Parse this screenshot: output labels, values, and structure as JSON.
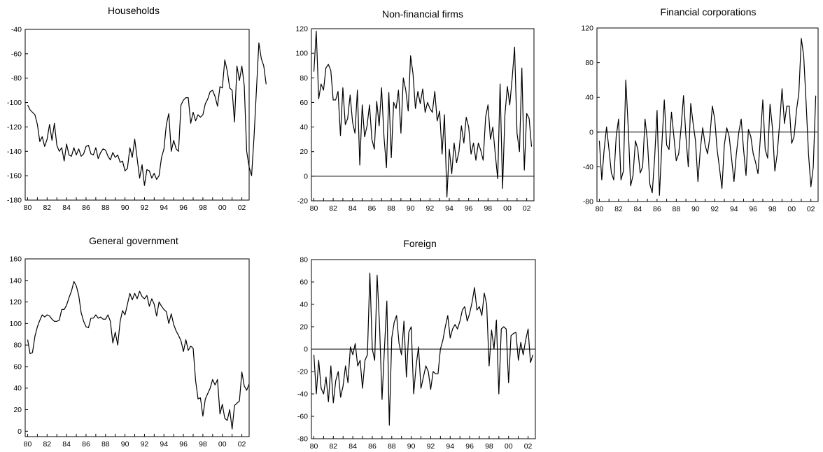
{
  "figure": {
    "background": "#ffffff",
    "line_color": "#000000"
  },
  "chart_data": [
    {
      "type": "line",
      "title": "Households",
      "xlabel": "",
      "ylabel": "",
      "x_start": 1980.0,
      "x_step": 0.25,
      "xlim": [
        1979.75,
        2002.75
      ],
      "xticks": [
        80,
        82,
        84,
        86,
        88,
        90,
        92,
        94,
        96,
        98,
        0,
        2
      ],
      "xtick_labels": [
        "80",
        "82",
        "84",
        "86",
        "88",
        "90",
        "92",
        "94",
        "96",
        "98",
        "00",
        "02"
      ],
      "ylim": [
        -180,
        -40
      ],
      "yticks": [
        -180,
        -160,
        -140,
        -120,
        -100,
        -80,
        -60,
        -40
      ],
      "zero_line": false,
      "grid": false,
      "series": [
        {
          "values": [
            -102,
            -106,
            -108,
            -110,
            -118,
            -132,
            -128,
            -136,
            -130,
            -118,
            -131,
            -117,
            -135,
            -140,
            -137,
            -148,
            -134,
            -143,
            -144,
            -137,
            -143,
            -138,
            -144,
            -142,
            -136,
            -135,
            -142,
            -143,
            -137,
            -146,
            -141,
            -138,
            -139,
            -144,
            -147,
            -141,
            -145,
            -143,
            -149,
            -148,
            -156,
            -154,
            -137,
            -145,
            -130,
            -146,
            -162,
            -151,
            -168,
            -155,
            -156,
            -162,
            -158,
            -163,
            -160,
            -145,
            -138,
            -118,
            -109,
            -140,
            -131,
            -138,
            -140,
            -102,
            -98,
            -96,
            -96,
            -117,
            -108,
            -115,
            -110,
            -112,
            -110,
            -101,
            -97,
            -91,
            -90,
            -95,
            -103,
            -87,
            -88,
            -65,
            -74,
            -88,
            -90,
            -116,
            -70,
            -82,
            -70,
            -86,
            -140,
            -153,
            -160,
            -128,
            -90,
            -51,
            -64,
            -70,
            -85
          ]
        }
      ]
    },
    {
      "type": "line",
      "title": "Non-financial firms",
      "xlabel": "",
      "ylabel": "",
      "x_start": 1980.0,
      "x_step": 0.25,
      "xlim": [
        1979.75,
        2002.75
      ],
      "xticks": [
        80,
        82,
        84,
        86,
        88,
        90,
        92,
        94,
        96,
        98,
        0,
        2
      ],
      "xtick_labels": [
        "80",
        "82",
        "84",
        "86",
        "88",
        "90",
        "92",
        "94",
        "96",
        "98",
        "00",
        "02"
      ],
      "ylim": [
        -20,
        120
      ],
      "yticks": [
        -20,
        0,
        20,
        40,
        60,
        80,
        100,
        120
      ],
      "zero_line": true,
      "grid": false,
      "series": [
        {
          "values": [
            85,
            118,
            63,
            75,
            70,
            88,
            91,
            86,
            62,
            62,
            69,
            33,
            72,
            42,
            47,
            66,
            44,
            35,
            70,
            9,
            58,
            32,
            41,
            58,
            30,
            22,
            61,
            41,
            72,
            32,
            7,
            68,
            15,
            60,
            55,
            70,
            35,
            80,
            70,
            53,
            98,
            83,
            55,
            69,
            59,
            71,
            52,
            60,
            55,
            52,
            69,
            45,
            53,
            18,
            50,
            -17,
            22,
            2,
            27,
            11,
            20,
            41,
            27,
            48,
            40,
            18,
            27,
            13,
            27,
            21,
            13,
            48,
            58,
            30,
            40,
            18,
            -2,
            75,
            -10,
            50,
            73,
            58,
            80,
            105,
            35,
            20,
            88,
            5,
            51,
            47,
            24
          ]
        }
      ]
    },
    {
      "type": "line",
      "title": "Financial corporations",
      "xlabel": "",
      "ylabel": "",
      "x_start": 1980.0,
      "x_step": 0.25,
      "xlim": [
        1979.75,
        2002.75
      ],
      "xticks": [
        80,
        82,
        84,
        86,
        88,
        90,
        92,
        94,
        96,
        98,
        0,
        2
      ],
      "xtick_labels": [
        "80",
        "82",
        "84",
        "86",
        "88",
        "90",
        "92",
        "94",
        "96",
        "98",
        "00",
        "02"
      ],
      "ylim": [
        -80,
        120
      ],
      "yticks": [
        -80,
        -40,
        0,
        40,
        80,
        120
      ],
      "zero_line": true,
      "grid": false,
      "series": [
        {
          "values": [
            -10,
            -55,
            -20,
            6,
            -20,
            -47,
            -55,
            -5,
            15,
            -55,
            -45,
            60,
            5,
            -62,
            -50,
            -10,
            -20,
            -47,
            -40,
            15,
            -10,
            -60,
            -70,
            -30,
            25,
            -73,
            -15,
            37,
            -15,
            -20,
            23,
            -5,
            -33,
            -25,
            5,
            42,
            -5,
            -40,
            33,
            10,
            -10,
            -57,
            -20,
            5,
            -15,
            -25,
            -5,
            30,
            15,
            -20,
            -42,
            -65,
            -15,
            5,
            -5,
            -30,
            -57,
            -25,
            0,
            15,
            -20,
            -50,
            3,
            -5,
            -25,
            -35,
            -48,
            -5,
            37,
            -20,
            -30,
            32,
            5,
            -45,
            -25,
            10,
            50,
            10,
            30,
            30,
            -13,
            -5,
            25,
            45,
            108,
            88,
            35,
            -25,
            -63,
            -40,
            42
          ]
        }
      ]
    },
    {
      "type": "line",
      "title": "General government",
      "xlabel": "",
      "ylabel": "",
      "x_start": 1980.0,
      "x_step": 0.25,
      "xlim": [
        1979.75,
        2002.75
      ],
      "xticks": [
        80,
        82,
        84,
        86,
        88,
        90,
        92,
        94,
        96,
        98,
        0,
        2
      ],
      "xtick_labels": [
        "80",
        "82",
        "84",
        "86",
        "88",
        "90",
        "92",
        "94",
        "96",
        "98",
        "00",
        "02"
      ],
      "ylim": [
        -5,
        160
      ],
      "yticks": [
        0,
        20,
        40,
        60,
        80,
        100,
        120,
        140,
        160
      ],
      "zero_line": false,
      "grid": false,
      "series": [
        {
          "values": [
            85,
            72,
            73,
            88,
            97,
            103,
            108,
            106,
            108,
            107,
            104,
            102,
            102,
            103,
            113,
            113,
            117,
            124,
            130,
            139,
            135,
            126,
            110,
            102,
            97,
            96,
            105,
            105,
            108,
            105,
            106,
            104,
            104,
            108,
            102,
            82,
            92,
            80,
            102,
            112,
            108,
            118,
            128,
            122,
            128,
            123,
            130,
            125,
            123,
            126,
            116,
            123,
            118,
            107,
            120,
            116,
            113,
            111,
            100,
            109,
            99,
            93,
            89,
            84,
            74,
            85,
            75,
            79,
            77,
            47,
            30,
            31,
            14,
            30,
            35,
            40,
            48,
            43,
            48,
            16,
            25,
            12,
            10,
            20,
            2,
            24,
            26,
            28,
            55,
            42,
            38,
            44
          ]
        }
      ]
    },
    {
      "type": "line",
      "title": "Foreign",
      "xlabel": "",
      "ylabel": "",
      "x_start": 1980.0,
      "x_step": 0.25,
      "xlim": [
        1979.75,
        2002.75
      ],
      "xticks": [
        80,
        82,
        84,
        86,
        88,
        90,
        92,
        94,
        96,
        98,
        0,
        2
      ],
      "xtick_labels": [
        "80",
        "82",
        "84",
        "86",
        "88",
        "90",
        "92",
        "94",
        "96",
        "98",
        "00",
        "02"
      ],
      "ylim": [
        -80,
        80
      ],
      "yticks": [
        -80,
        -60,
        -40,
        -20,
        0,
        20,
        40,
        60,
        80
      ],
      "zero_line": true,
      "grid": false,
      "series": [
        {
          "values": [
            -5,
            -40,
            -10,
            -35,
            -40,
            -25,
            -47,
            -15,
            -48,
            -28,
            -20,
            -43,
            -33,
            -15,
            -30,
            2,
            -5,
            5,
            -15,
            -10,
            -35,
            -10,
            -5,
            68,
            0,
            -10,
            66,
            20,
            -45,
            0,
            43,
            -68,
            10,
            24,
            30,
            5,
            -5,
            25,
            -25,
            15,
            20,
            -40,
            -15,
            2,
            -35,
            -25,
            -15,
            -20,
            -36,
            -20,
            -22,
            -22,
            0,
            8,
            20,
            30,
            10,
            18,
            22,
            18,
            25,
            35,
            38,
            25,
            32,
            42,
            55,
            35,
            38,
            30,
            50,
            40,
            -15,
            17,
            0,
            26,
            -40,
            18,
            20,
            18,
            -30,
            12,
            14,
            15,
            -10,
            6,
            -5,
            8,
            18,
            -12,
            -5
          ]
        }
      ]
    }
  ]
}
